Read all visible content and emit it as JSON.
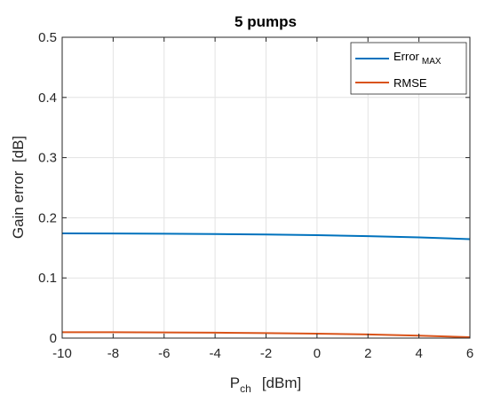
{
  "chart_data": {
    "type": "line",
    "title": "5 pumps",
    "xlabel": {
      "main": "P",
      "sub": "ch",
      "unit": "[dBm]"
    },
    "ylabel": "Gain error  [dB]",
    "xlim": [
      -10,
      6
    ],
    "ylim": [
      0,
      0.5
    ],
    "xticks": [
      -10,
      -8,
      -6,
      -4,
      -2,
      0,
      2,
      4,
      6
    ],
    "yticks": [
      0,
      0.1,
      0.2,
      0.3,
      0.4,
      0.5
    ],
    "grid": true,
    "legend_position": "top-right",
    "series": [
      {
        "name": "Error",
        "name_sub": "MAX",
        "color": "#0072BD",
        "x": [
          -10,
          -8,
          -6,
          -4,
          -2,
          0,
          2,
          4,
          6
        ],
        "y": [
          0.174,
          0.1738,
          0.1735,
          0.173,
          0.1722,
          0.171,
          0.1695,
          0.1675,
          0.1645
        ]
      },
      {
        "name": "RMSE",
        "color": "#D95319",
        "x": [
          -10,
          -8,
          -6,
          -4,
          -2,
          0,
          2,
          4,
          6
        ],
        "y": [
          0.0098,
          0.0097,
          0.0094,
          0.009,
          0.0083,
          0.0074,
          0.006,
          0.004,
          0.0015
        ]
      }
    ]
  }
}
